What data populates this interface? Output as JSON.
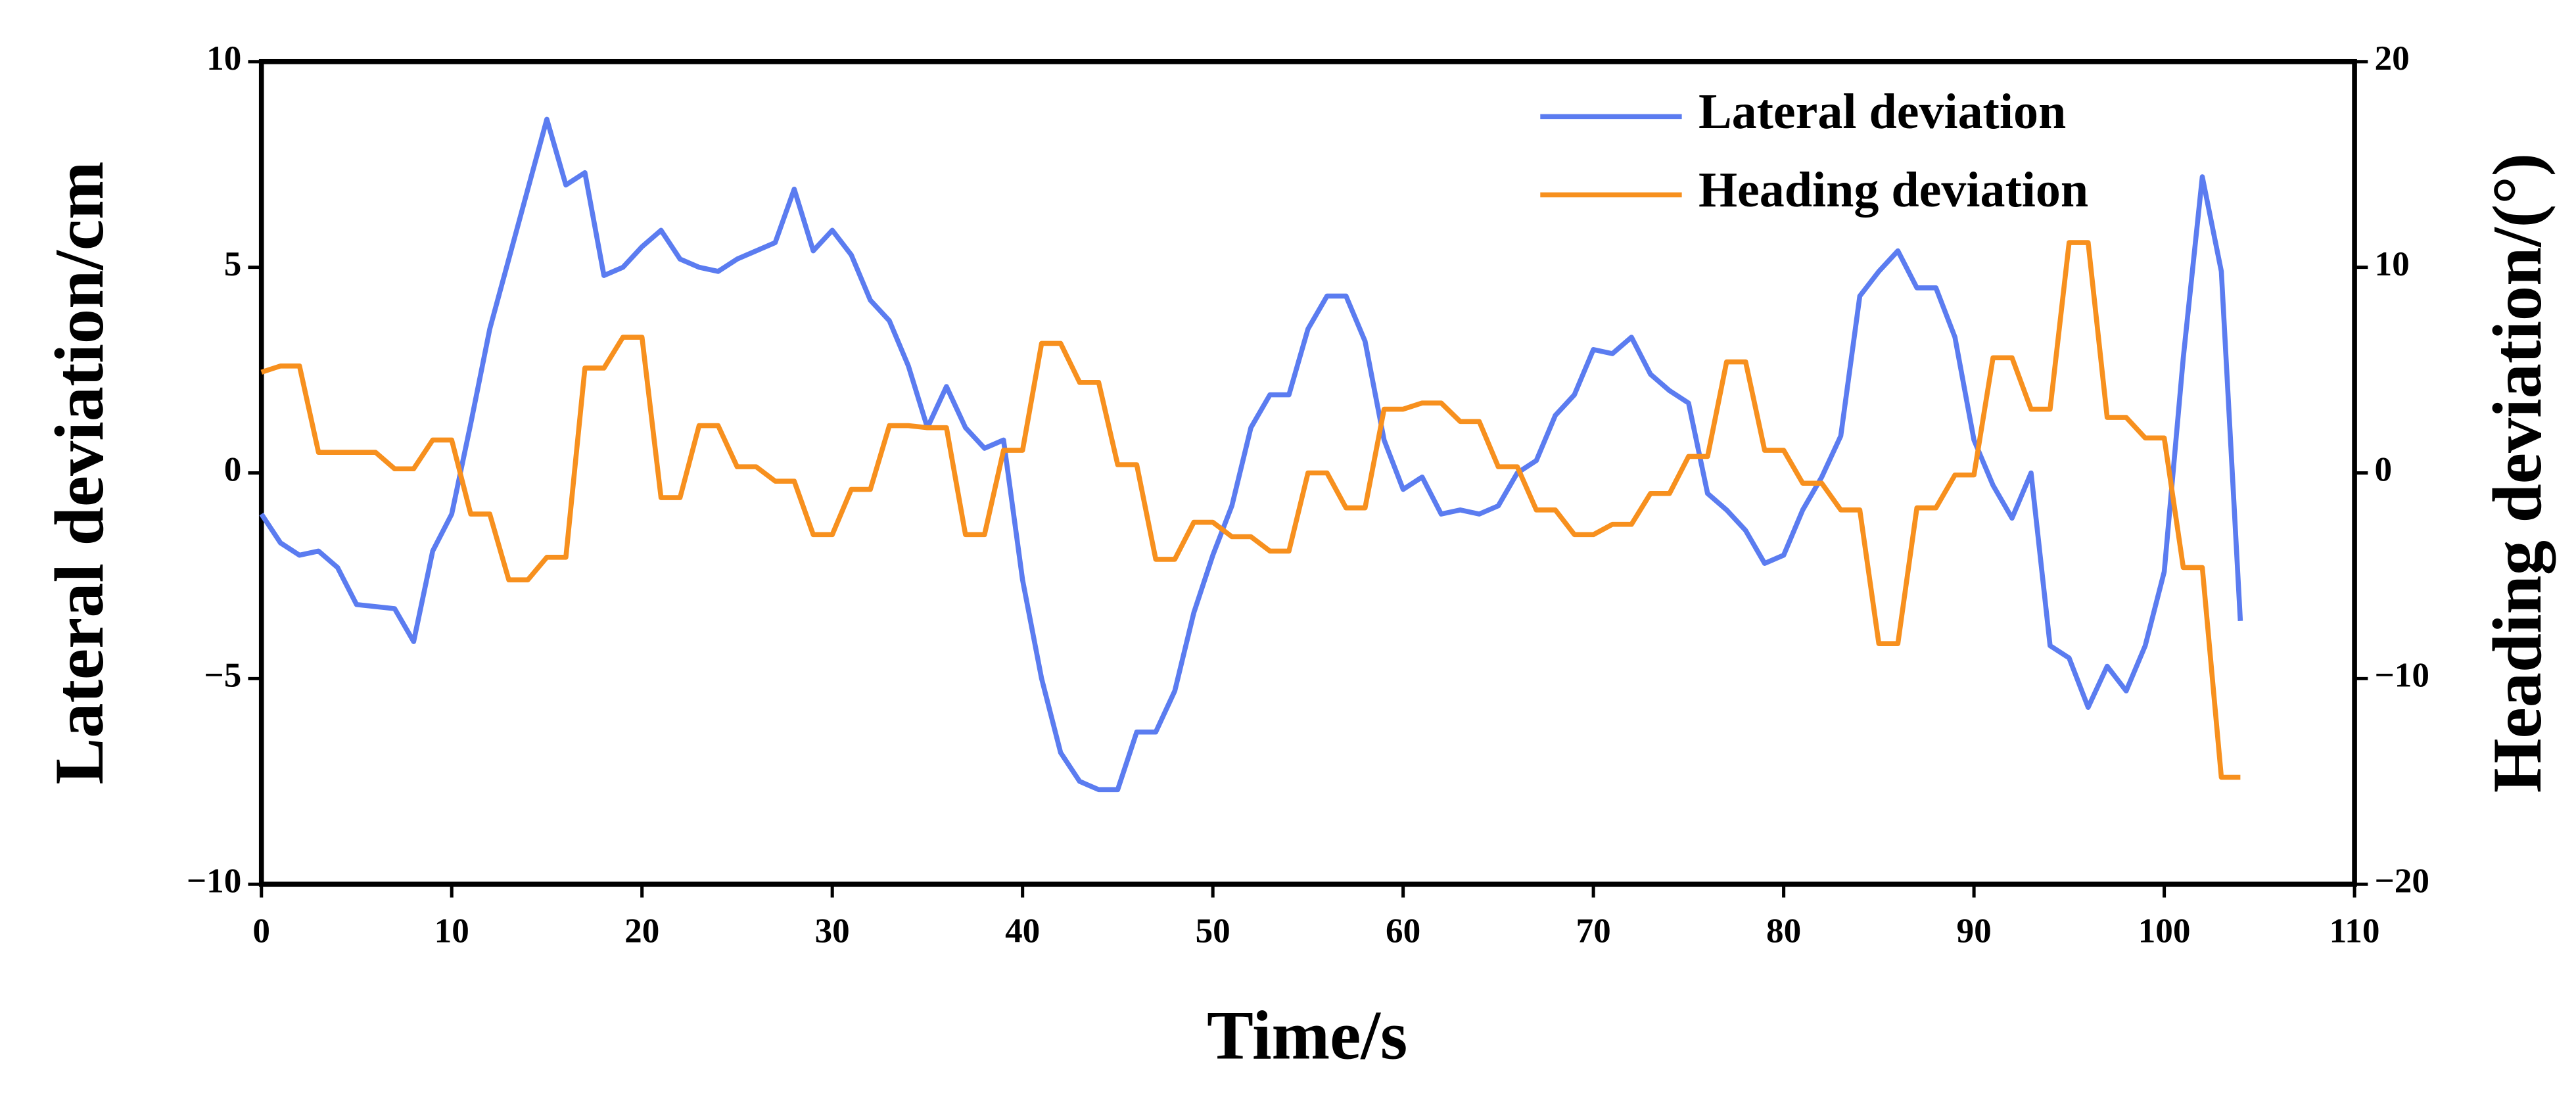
{
  "chart_data": {
    "type": "line",
    "x_label": "Time/s",
    "y_label": "Lateral deviation/cm",
    "y2_label": "Heading deviation/(°)",
    "x": [
      0,
      1,
      2,
      3,
      4,
      5,
      6,
      7,
      8,
      9,
      10,
      11,
      12,
      13,
      14,
      15,
      16,
      17,
      18,
      19,
      20,
      21,
      22,
      23,
      24,
      25,
      26,
      27,
      28,
      29,
      30,
      31,
      32,
      33,
      34,
      35,
      36,
      37,
      38,
      39,
      40,
      41,
      42,
      43,
      44,
      45,
      46,
      47,
      48,
      49,
      50,
      51,
      52,
      53,
      54,
      55,
      56,
      57,
      58,
      59,
      60,
      61,
      62,
      63,
      64,
      65,
      66,
      67,
      68,
      69,
      70,
      71,
      72,
      73,
      74,
      75,
      76,
      77,
      78,
      79,
      80,
      81,
      82,
      83,
      84,
      85,
      86,
      87,
      88,
      89,
      90,
      91,
      92,
      93,
      94,
      95,
      96,
      97,
      98,
      99,
      100,
      101,
      102,
      103,
      104
    ],
    "series": [
      {
        "name": "Lateral deviation",
        "color": "#5b7cf0",
        "axis": "y",
        "values": [
          -1.0,
          -1.7,
          -2.0,
          -1.9,
          -2.3,
          -3.2,
          -3.25,
          -3.3,
          -4.1,
          -1.9,
          -1.0,
          1.2,
          3.5,
          5.2,
          6.9,
          8.6,
          7.0,
          7.3,
          4.8,
          5.0,
          5.5,
          5.9,
          5.2,
          5.0,
          4.9,
          5.2,
          5.4,
          5.6,
          6.9,
          5.4,
          5.9,
          5.3,
          4.2,
          3.7,
          2.6,
          1.1,
          2.1,
          1.1,
          0.6,
          0.8,
          -2.6,
          -5.0,
          -6.8,
          -7.5,
          -7.7,
          -7.7,
          -6.3,
          -6.3,
          -5.3,
          -3.4,
          -2.0,
          -0.8,
          1.1,
          1.9,
          1.9,
          3.5,
          4.3,
          4.3,
          3.2,
          0.8,
          -0.4,
          -0.1,
          -1.0,
          -0.9,
          -1.0,
          -0.8,
          0.0,
          0.3,
          1.4,
          1.9,
          3.0,
          2.9,
          3.3,
          2.4,
          2.0,
          1.7,
          -0.5,
          -0.9,
          -1.4,
          -2.2,
          -2.0,
          -0.9,
          -0.1,
          0.9,
          4.3,
          4.9,
          5.4,
          4.5,
          4.5,
          3.3,
          0.8,
          -0.3,
          -1.1,
          0.0,
          -4.2,
          -4.5,
          -5.7,
          -4.7,
          -5.3,
          -4.2,
          -2.4,
          2.8,
          7.2,
          4.9,
          -3.6
        ]
      },
      {
        "name": "Heading deviation",
        "color": "#f7901e",
        "axis": "y2",
        "values": [
          4.9,
          5.2,
          5.2,
          1.0,
          1.0,
          1.0,
          1.0,
          0.2,
          0.2,
          1.6,
          1.6,
          -2.0,
          -2.0,
          -5.2,
          -5.2,
          -4.1,
          -4.1,
          5.1,
          5.1,
          6.6,
          6.6,
          -1.2,
          -1.2,
          2.3,
          2.3,
          0.3,
          0.3,
          -0.4,
          -0.4,
          -3.0,
          -3.0,
          -0.8,
          -0.8,
          2.3,
          2.3,
          2.2,
          2.2,
          -3.0,
          -3.0,
          1.1,
          1.1,
          6.3,
          6.3,
          4.4,
          4.4,
          0.4,
          0.4,
          -4.2,
          -4.2,
          -2.4,
          -2.4,
          -3.1,
          -3.1,
          -3.8,
          -3.8,
          0.0,
          0.0,
          -1.7,
          -1.7,
          3.1,
          3.1,
          3.4,
          3.4,
          2.5,
          2.5,
          0.3,
          0.3,
          -1.8,
          -1.8,
          -3.0,
          -3.0,
          -2.5,
          -2.5,
          -1.0,
          -1.0,
          0.8,
          0.8,
          5.4,
          5.4,
          1.1,
          1.1,
          -0.5,
          -0.5,
          -1.8,
          -1.8,
          -8.3,
          -8.3,
          -1.7,
          -1.7,
          -0.1,
          -0.1,
          5.6,
          5.6,
          3.1,
          3.1,
          11.2,
          11.2,
          2.7,
          2.7,
          1.7,
          1.7,
          -4.6,
          -4.6,
          -14.8,
          -14.8
        ]
      }
    ],
    "xlim": [
      0,
      110
    ],
    "xticks": [
      0,
      10,
      20,
      30,
      40,
      50,
      60,
      70,
      80,
      90,
      100,
      110
    ],
    "ylim": [
      -10,
      10
    ],
    "yticks": [
      {
        "value": -10,
        "label": "−10"
      },
      {
        "value": -5,
        "label": "−5"
      },
      0,
      5,
      10
    ],
    "y2lim": [
      -20,
      20
    ],
    "y2ticks": [
      {
        "value": -20,
        "label": "−20"
      },
      {
        "value": -10,
        "label": "−10"
      },
      0,
      10,
      20
    ],
    "legend": "upper right"
  }
}
